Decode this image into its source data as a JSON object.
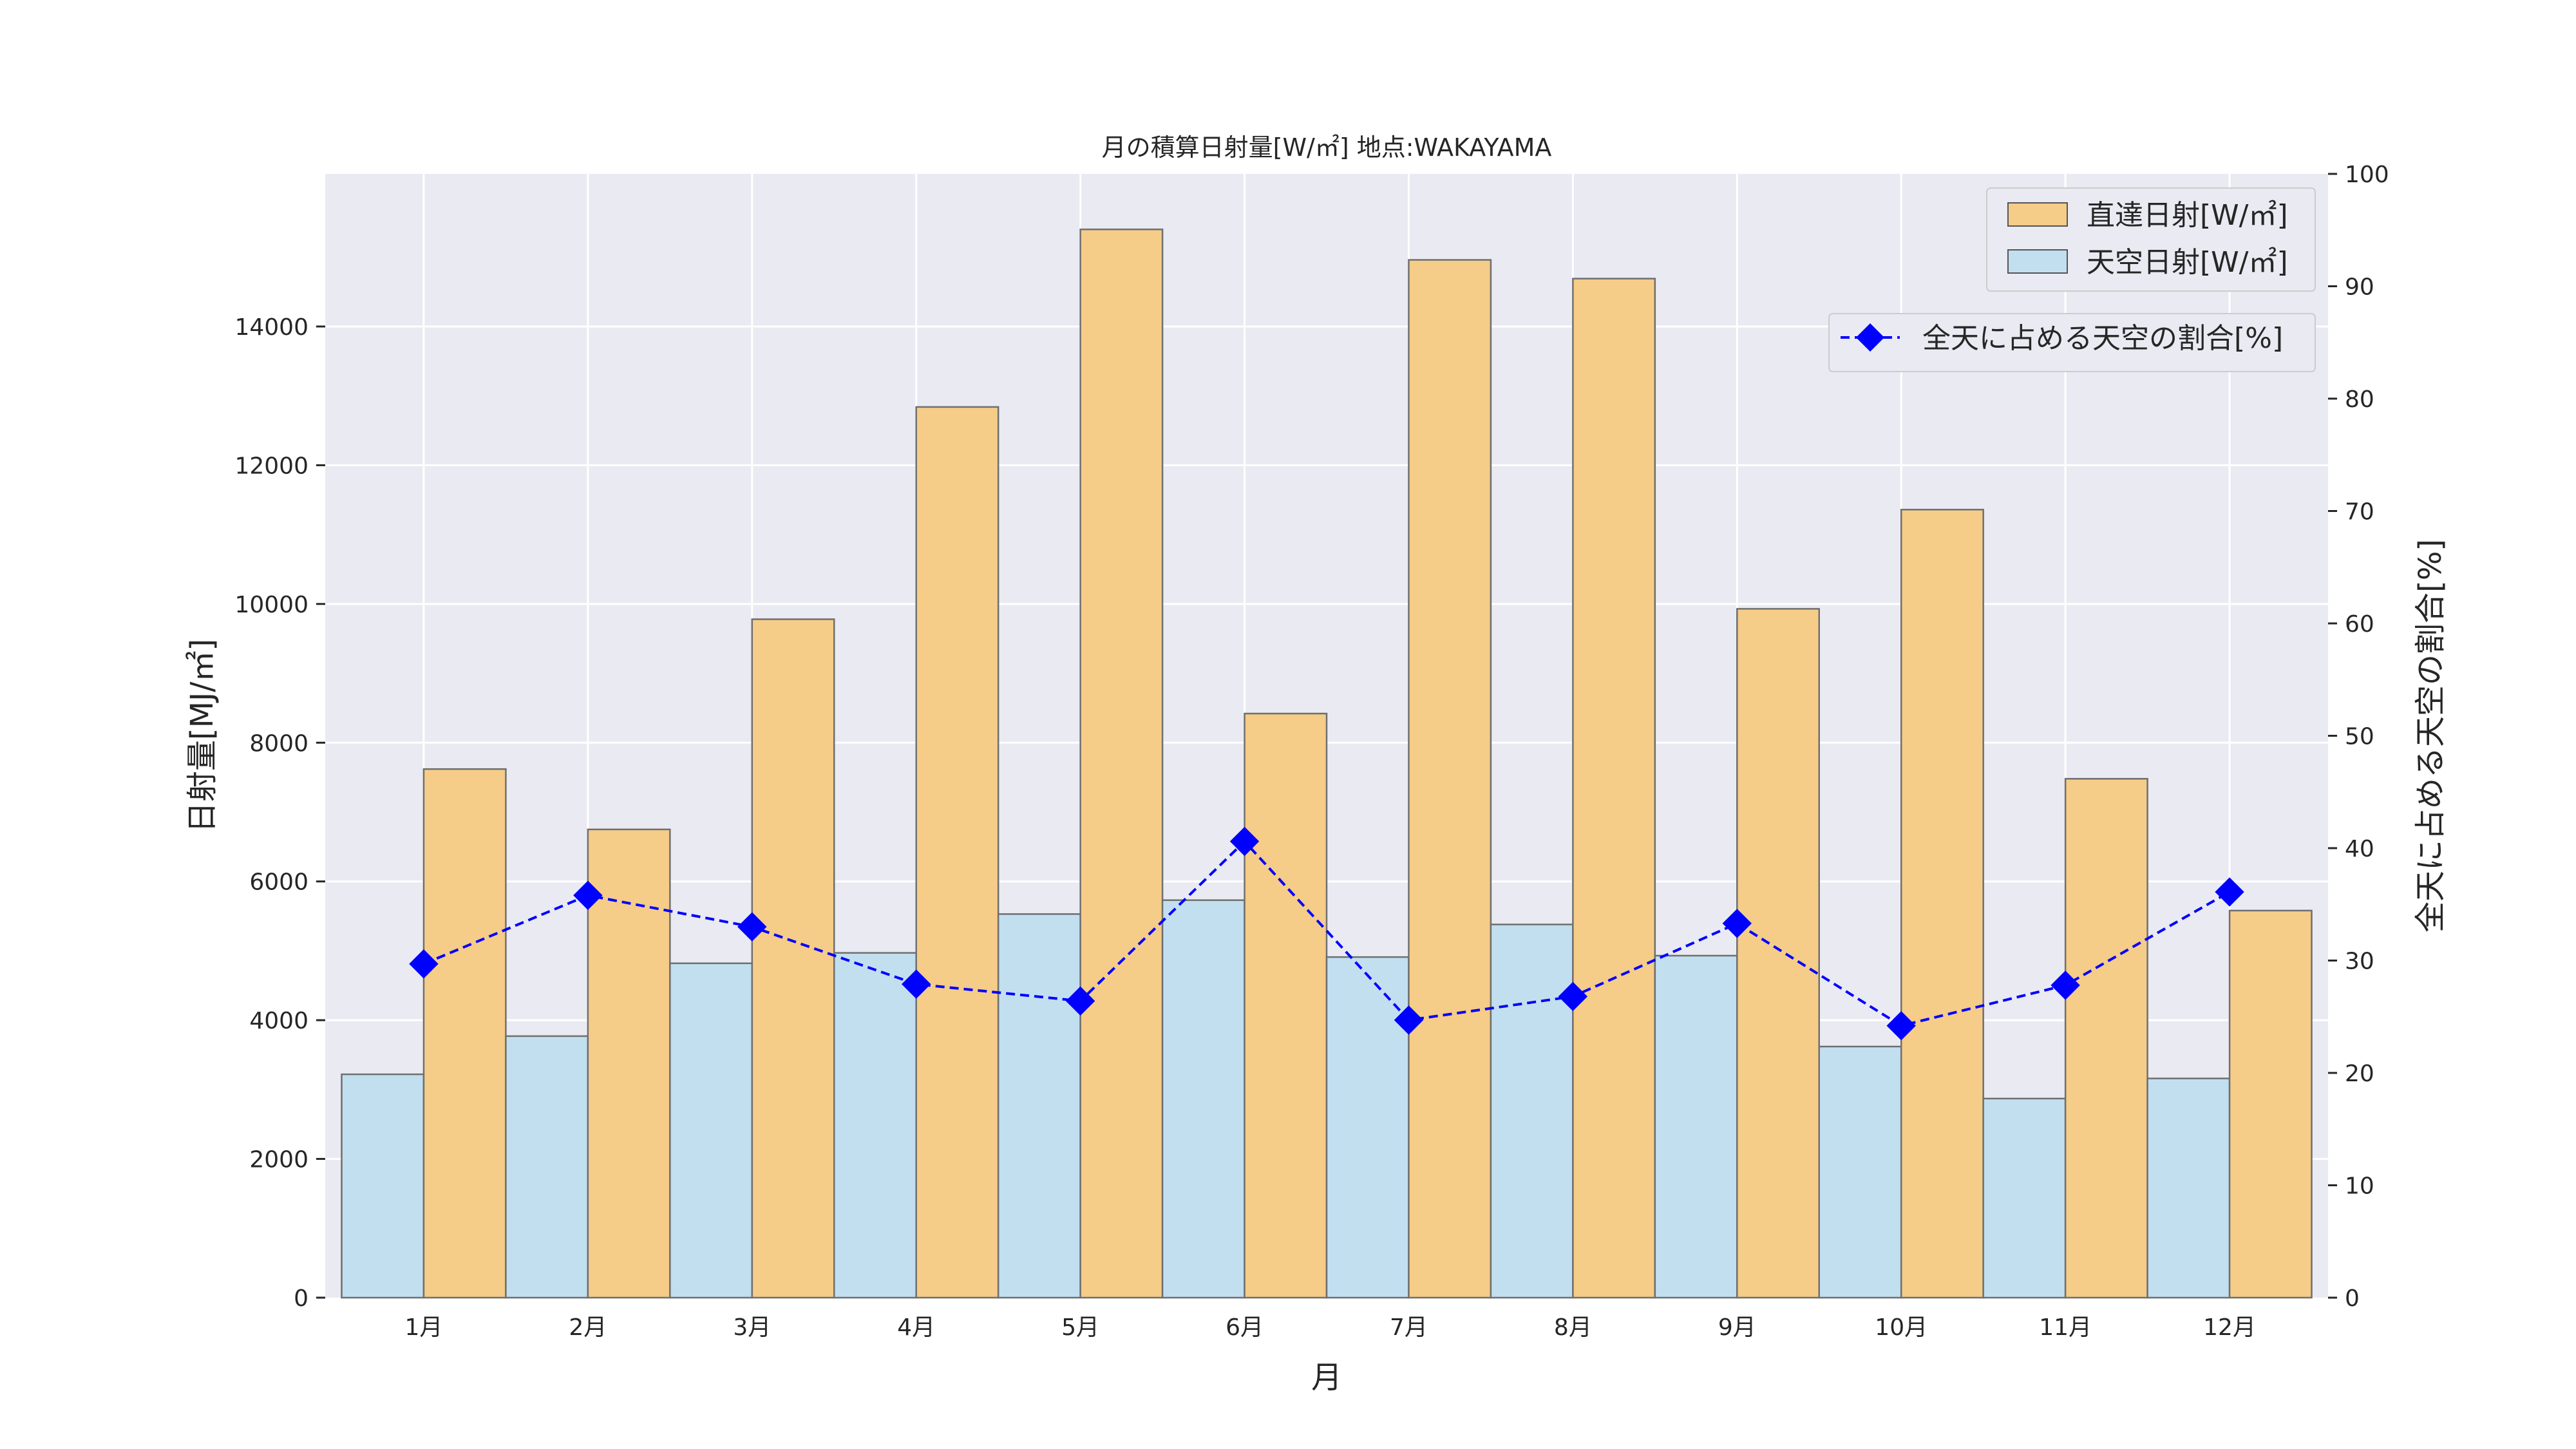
{
  "chart_data": {
    "type": "bar",
    "title": "月の積算日射量[W/㎡] 地点:WAKAYAMA",
    "xlabel": "月",
    "ylabel": "日射量[MJ/㎡]",
    "y2label": "全天に占める天空の割合[%]",
    "categories": [
      "1月",
      "2月",
      "3月",
      "4月",
      "5月",
      "6月",
      "7月",
      "8月",
      "9月",
      "10月",
      "11月",
      "12月"
    ],
    "ylim": [
      0,
      16200
    ],
    "y2lim": [
      0,
      100
    ],
    "yticks": [
      0,
      2000,
      4000,
      6000,
      8000,
      10000,
      12000,
      14000
    ],
    "y2ticks": [
      0,
      10,
      20,
      30,
      40,
      50,
      60,
      70,
      80,
      90,
      100
    ],
    "grid": true,
    "series": [
      {
        "name": "直達日射[W/㎡]",
        "kind": "bar",
        "axis": "left",
        "color": "#f5cc88",
        "values": [
          7620,
          6750,
          9780,
          12840,
          15400,
          8420,
          14960,
          14690,
          9930,
          11360,
          7480,
          5580
        ]
      },
      {
        "name": "天空日射[W/㎡]",
        "kind": "bar",
        "axis": "left",
        "color": "#c2dff0",
        "values": [
          3220,
          3770,
          4820,
          4970,
          5530,
          5730,
          4910,
          5380,
          4930,
          3620,
          2870,
          3160
        ]
      },
      {
        "name": "全天に占める天空の割合[%]",
        "kind": "line",
        "axis": "right",
        "color": "#0000ff",
        "marker": "diamond",
        "linestyle": "dashed",
        "values": [
          29.7,
          35.8,
          33.0,
          27.9,
          26.4,
          40.6,
          24.7,
          26.8,
          33.3,
          24.2,
          27.8,
          36.1
        ]
      }
    ],
    "legend": {
      "bars_position": "top-right",
      "line_position": "upper-right"
    }
  }
}
